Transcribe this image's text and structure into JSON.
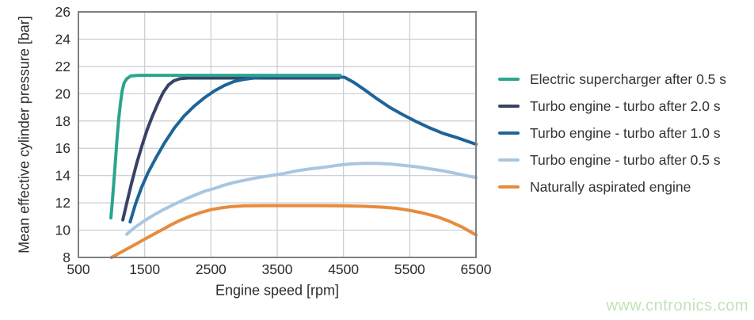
{
  "watermark": "www.cntronics.com",
  "colors": {
    "background": "#ffffff",
    "grid": "#c9ccd0",
    "frame": "#7e8184",
    "tick_text": "#2b2b2b",
    "watermark_green": "#c2e2b8"
  },
  "chart_data": {
    "type": "line",
    "title": "",
    "xlabel": "Engine speed [rpm]",
    "ylabel": "Mean effective cylinder pressure [bar]",
    "xlim": [
      500,
      6500
    ],
    "ylim": [
      8,
      26
    ],
    "xticks": [
      500,
      1500,
      2500,
      3500,
      4500,
      5500,
      6500
    ],
    "yticks": [
      8,
      10,
      12,
      14,
      16,
      18,
      20,
      22,
      24,
      26
    ],
    "grid": true,
    "legend_position": "right",
    "series": [
      {
        "name": "Electric supercharger after 0.5 s",
        "color": "#2AA58E",
        "points": [
          [
            990,
            10.9
          ],
          [
            1010,
            12.0
          ],
          [
            1035,
            13.6
          ],
          [
            1060,
            15.2
          ],
          [
            1085,
            16.8
          ],
          [
            1110,
            18.2
          ],
          [
            1135,
            19.3
          ],
          [
            1160,
            20.2
          ],
          [
            1190,
            20.8
          ],
          [
            1230,
            21.1
          ],
          [
            1290,
            21.3
          ],
          [
            1400,
            21.35
          ],
          [
            1700,
            21.35
          ],
          [
            2500,
            21.35
          ],
          [
            3500,
            21.35
          ],
          [
            4450,
            21.35
          ]
        ]
      },
      {
        "name": "Turbo engine - turbo after 2.0 s",
        "color": "#384266",
        "points": [
          [
            1170,
            10.75
          ],
          [
            1230,
            12.0
          ],
          [
            1300,
            13.4
          ],
          [
            1380,
            14.9
          ],
          [
            1460,
            16.2
          ],
          [
            1540,
            17.4
          ],
          [
            1620,
            18.4
          ],
          [
            1700,
            19.3
          ],
          [
            1780,
            20.1
          ],
          [
            1860,
            20.65
          ],
          [
            1940,
            20.95
          ],
          [
            2030,
            21.1
          ],
          [
            2150,
            21.15
          ],
          [
            2500,
            21.15
          ],
          [
            3200,
            21.15
          ],
          [
            4000,
            21.15
          ],
          [
            4430,
            21.15
          ]
        ]
      },
      {
        "name": "Turbo engine - turbo after 1.0 s",
        "color": "#1E6498",
        "points": [
          [
            1280,
            10.6
          ],
          [
            1360,
            11.9
          ],
          [
            1450,
            13.1
          ],
          [
            1550,
            14.2
          ],
          [
            1670,
            15.3
          ],
          [
            1800,
            16.4
          ],
          [
            1950,
            17.5
          ],
          [
            2100,
            18.4
          ],
          [
            2250,
            19.1
          ],
          [
            2400,
            19.7
          ],
          [
            2550,
            20.2
          ],
          [
            2700,
            20.6
          ],
          [
            2850,
            20.9
          ],
          [
            3000,
            21.05
          ],
          [
            3150,
            21.15
          ],
          [
            3300,
            21.22
          ],
          [
            3500,
            21.25
          ],
          [
            3800,
            21.25
          ],
          [
            4100,
            21.25
          ],
          [
            4400,
            21.25
          ],
          [
            4520,
            21.2
          ],
          [
            4650,
            20.85
          ],
          [
            4800,
            20.35
          ],
          [
            5000,
            19.65
          ],
          [
            5200,
            19.0
          ],
          [
            5400,
            18.45
          ],
          [
            5600,
            17.95
          ],
          [
            5800,
            17.5
          ],
          [
            6000,
            17.1
          ],
          [
            6200,
            16.8
          ],
          [
            6350,
            16.55
          ],
          [
            6500,
            16.3
          ]
        ]
      },
      {
        "name": "Turbo engine - turbo after 0.5 s",
        "color": "#A9C6E0",
        "points": [
          [
            1230,
            9.7
          ],
          [
            1350,
            10.2
          ],
          [
            1500,
            10.7
          ],
          [
            1650,
            11.15
          ],
          [
            1800,
            11.55
          ],
          [
            1950,
            11.9
          ],
          [
            2100,
            12.25
          ],
          [
            2250,
            12.55
          ],
          [
            2400,
            12.85
          ],
          [
            2550,
            13.05
          ],
          [
            2700,
            13.3
          ],
          [
            2850,
            13.5
          ],
          [
            3000,
            13.65
          ],
          [
            3200,
            13.85
          ],
          [
            3400,
            14.0
          ],
          [
            3600,
            14.15
          ],
          [
            3800,
            14.35
          ],
          [
            4000,
            14.5
          ],
          [
            4200,
            14.6
          ],
          [
            4400,
            14.75
          ],
          [
            4600,
            14.85
          ],
          [
            4800,
            14.9
          ],
          [
            5000,
            14.9
          ],
          [
            5200,
            14.85
          ],
          [
            5400,
            14.75
          ],
          [
            5600,
            14.65
          ],
          [
            5800,
            14.5
          ],
          [
            6000,
            14.35
          ],
          [
            6200,
            14.15
          ],
          [
            6350,
            14.0
          ],
          [
            6500,
            13.85
          ]
        ]
      },
      {
        "name": "Naturally aspirated engine",
        "color": "#E78B3D",
        "points": [
          [
            1000,
            8.0
          ],
          [
            1150,
            8.4
          ],
          [
            1300,
            8.8
          ],
          [
            1450,
            9.2
          ],
          [
            1600,
            9.6
          ],
          [
            1750,
            10.0
          ],
          [
            1900,
            10.4
          ],
          [
            2050,
            10.75
          ],
          [
            2200,
            11.05
          ],
          [
            2350,
            11.3
          ],
          [
            2500,
            11.5
          ],
          [
            2650,
            11.63
          ],
          [
            2800,
            11.72
          ],
          [
            3000,
            11.78
          ],
          [
            3300,
            11.8
          ],
          [
            3700,
            11.8
          ],
          [
            4100,
            11.8
          ],
          [
            4500,
            11.78
          ],
          [
            4800,
            11.75
          ],
          [
            5100,
            11.68
          ],
          [
            5300,
            11.6
          ],
          [
            5500,
            11.45
          ],
          [
            5700,
            11.25
          ],
          [
            5900,
            11.0
          ],
          [
            6100,
            10.65
          ],
          [
            6300,
            10.2
          ],
          [
            6500,
            9.65
          ]
        ]
      }
    ]
  }
}
